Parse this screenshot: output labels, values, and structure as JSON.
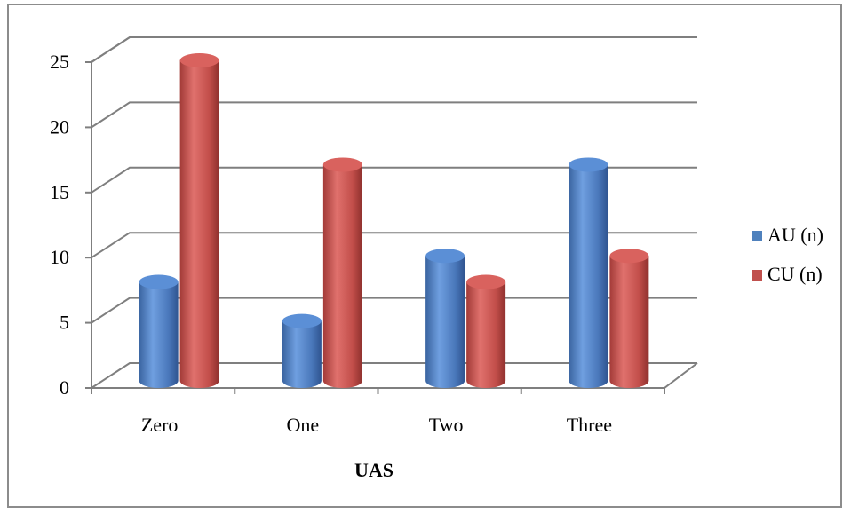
{
  "chart_data": {
    "type": "bar",
    "categories": [
      "Zero",
      "One",
      "Two",
      "Three"
    ],
    "series": [
      {
        "name": "AU (n)",
        "values": [
          8,
          5,
          10,
          17
        ],
        "color": "#4f81bd"
      },
      {
        "name": "CU (n)",
        "values": [
          25,
          17,
          8,
          10
        ],
        "color": "#c0504d"
      }
    ],
    "title": "",
    "xlabel": "UAS",
    "ylabel": "",
    "ylim": [
      0,
      25
    ],
    "yticks": [
      "0",
      "5",
      "10",
      "15",
      "20",
      "25"
    ],
    "grid": true,
    "legend_position": "right",
    "style": "3d-cylinder"
  }
}
